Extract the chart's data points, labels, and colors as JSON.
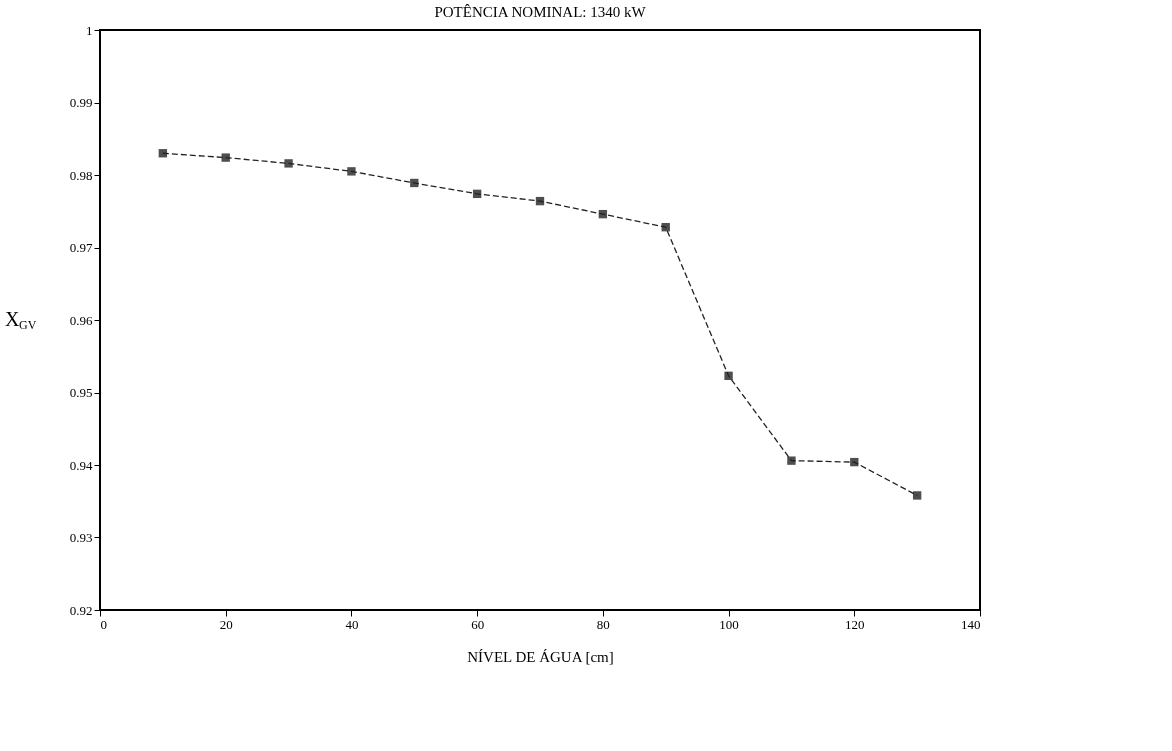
{
  "chart_data": {
    "type": "line",
    "title": "POTÊNCIA NOMINAL: 1340 kW",
    "xlabel": "NÍVEL DE ÁGUA [cm]",
    "ylabel": "X$_{GV}$",
    "x": [
      10,
      20,
      30,
      40,
      50,
      60,
      70,
      80,
      90,
      100,
      110,
      120,
      130
    ],
    "series": [
      {
        "color": "#222222",
        "values": [
          0.983,
          0.9824,
          0.9816,
          0.9805,
          0.9789,
          0.9774,
          0.9764,
          0.9746,
          0.9728,
          0.9523,
          0.9406,
          0.9404,
          0.9358
        ]
      }
    ],
    "xlim": [
      0,
      140
    ],
    "xticks": [
      0,
      20,
      40,
      60,
      80,
      100,
      120,
      140
    ],
    "ylim": [
      0.92,
      1
    ],
    "yticks": [
      0.92,
      0.93,
      0.94,
      0.95,
      0.96,
      0.97,
      0.98,
      0.99,
      1
    ],
    "grid": false,
    "marker": "square",
    "line_style": "dashed"
  }
}
